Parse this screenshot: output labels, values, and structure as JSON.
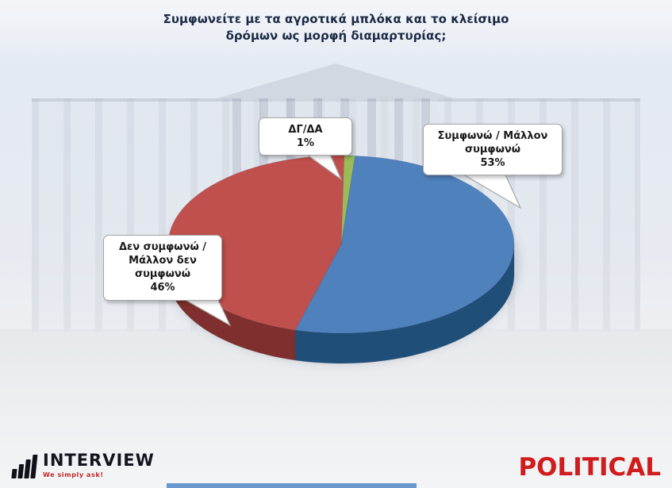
{
  "title": {
    "text": "Συμφωνείτε με τα αγροτικά μπλόκα και το κλείσιμο δρόμων ως μορφή διαμαρτυρίας;"
  },
  "chart_data": {
    "type": "pie",
    "style": "3d",
    "title": "Συμφωνείτε με τα αγροτικά μπλόκα και το κλείσιμο δρόμων ως μορφή διαμαρτυρίας;",
    "direction": "clockwise",
    "start_angle_deg": -89,
    "legend": "callout labels on chart",
    "slices": [
      {
        "label": "ΔΓ/ΔΑ",
        "value": 1,
        "color": "#9bbb59",
        "side_color": "#71913c"
      },
      {
        "label": "Συμφωνώ / Μάλλον συμφωνώ",
        "value": 53,
        "color": "#4f81bd",
        "side_color": "#1f4e79"
      },
      {
        "label": "Δεν συμφωνώ / Μάλλον δεν συμφωνώ",
        "value": 46,
        "color": "#c0504d",
        "side_color": "#7f2f2d"
      }
    ]
  },
  "callouts": {
    "dk_na": {
      "label": "ΔΓ/ΔΑ",
      "value": "1%"
    },
    "agree": {
      "label": "Συμφωνώ / Μάλλον συμφωνώ",
      "value": "53%"
    },
    "disagree": {
      "label": "Δεν συμφωνώ / Μάλλον δεν συμφωνώ",
      "value": "46%"
    }
  },
  "footer": {
    "logo": {
      "name": "INTERVIEW",
      "tagline": "We simply ask!"
    },
    "brand": "POLITICAL"
  }
}
